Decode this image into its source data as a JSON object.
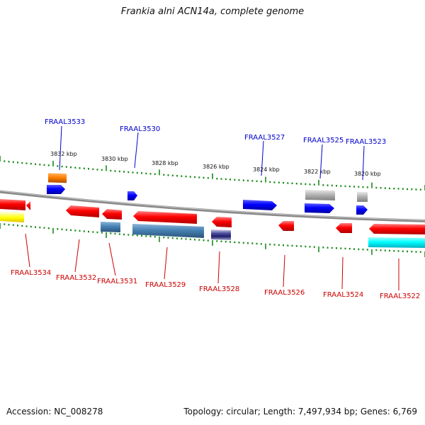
{
  "title": "Frankia alni ACN14a, complete genome",
  "footer": {
    "accession": "Accession: NC_008278",
    "summary": "Topology: circular; Length: 7,497,934 bp; Genes: 6,769"
  },
  "colors": {
    "background": "#ffffff",
    "backbone": "#8a8a8a",
    "tick": "#1a8a1a",
    "label_top": "#0000cc",
    "label_bottom": "#cc0000",
    "red": "#ff0000",
    "blue": "#0000ff",
    "orange": "#ff8000",
    "gray": "#b4b4b4",
    "yellow": "#ffff80",
    "steelblue": "#4682b4",
    "navy": "#1e1e6e",
    "cyan": "#00ffff"
  },
  "ruler": {
    "unit": "kbp",
    "ticks": [
      {
        "label": "3832 kbp"
      },
      {
        "label": "3830 kbp"
      },
      {
        "label": "3828 kbp"
      },
      {
        "label": "3826 kbp"
      },
      {
        "label": "3824 kbp"
      },
      {
        "label": "3822 kbp"
      },
      {
        "label": "3820 kbp"
      }
    ]
  },
  "genes_top": [
    {
      "label": "FRAAL3533"
    },
    {
      "label": "FRAAL3530"
    },
    {
      "label": "FRAAL3527"
    },
    {
      "label": "FRAAL3525"
    },
    {
      "label": "FRAAL3523"
    }
  ],
  "genes_bottom": [
    {
      "label": "FRAAL3534"
    },
    {
      "label": "FRAAL3532"
    },
    {
      "label": "FRAAL3531"
    },
    {
      "label": "FRAAL3529"
    },
    {
      "label": "FRAAL3528"
    },
    {
      "label": "FRAAL3526"
    },
    {
      "label": "FRAAL3524"
    },
    {
      "label": "FRAAL3522"
    }
  ]
}
